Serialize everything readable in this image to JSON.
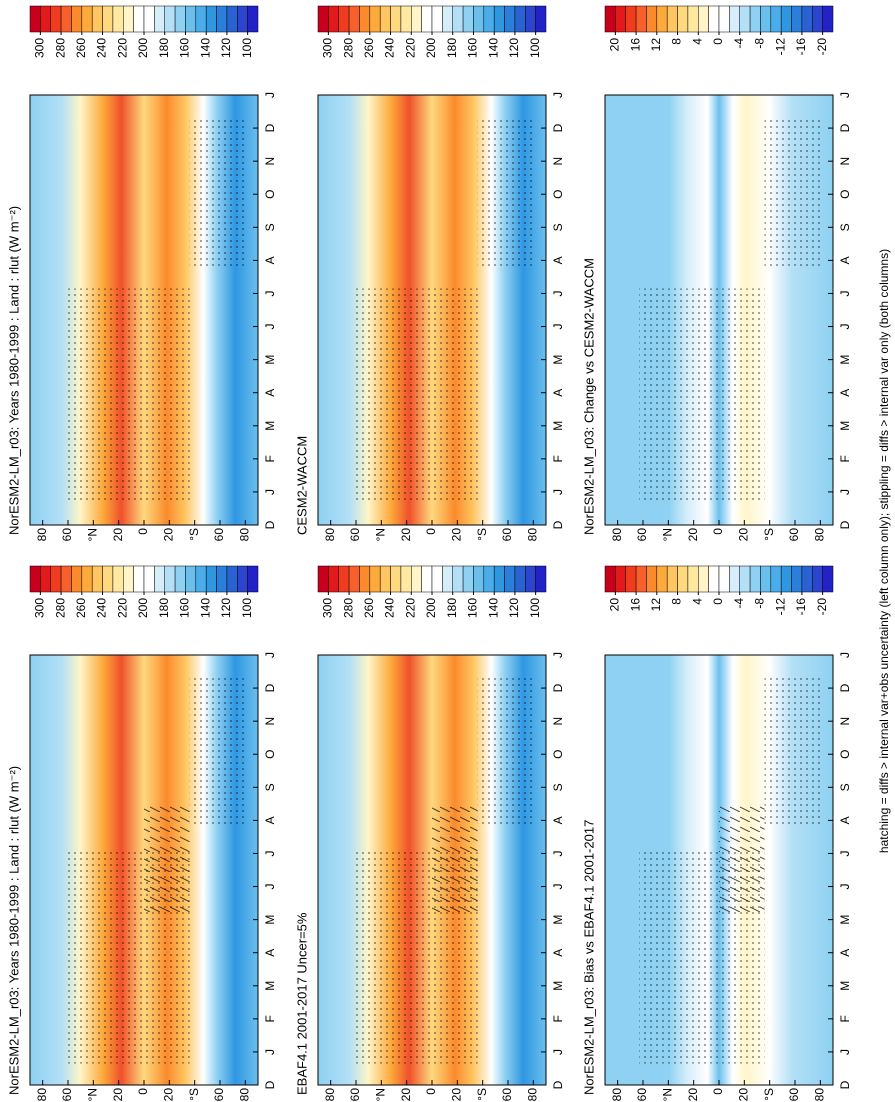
{
  "chart_data": [
    {
      "type": "contour",
      "title": "NorESM2-LM_r03: Years 1980-1999 : Land : rlut (W m⁻²)",
      "field": "abs",
      "hatching": true,
      "categories": [
        "D",
        "J",
        "F",
        "M",
        "A",
        "M",
        "J",
        "J",
        "A",
        "S",
        "O",
        "N",
        "D",
        "J"
      ],
      "ylim": [
        -90,
        90
      ],
      "yticks": [
        80,
        60,
        {
          "value": 40,
          "label": "°N"
        },
        20,
        0,
        {
          "value": -20,
          "label": "20"
        },
        {
          "value": -40,
          "label": "°S"
        },
        {
          "value": -60,
          "label": "60"
        },
        {
          "value": -80,
          "label": "80"
        }
      ],
      "clim": [
        310,
        90
      ],
      "colorbar_ticks": [
        300,
        280,
        260,
        240,
        220,
        200,
        180,
        160,
        140,
        120,
        100
      ]
    },
    {
      "type": "contour",
      "title": "NorESM2-LM_r03: Years 1980-1999 : Land : rlut (W m⁻²)",
      "field": "abs",
      "hatching": false,
      "categories": [
        "D",
        "J",
        "F",
        "M",
        "A",
        "M",
        "J",
        "J",
        "A",
        "S",
        "O",
        "N",
        "D",
        "J"
      ],
      "ylim": [
        -90,
        90
      ],
      "yticks": [
        80,
        60,
        {
          "value": 40,
          "label": "°N"
        },
        20,
        0,
        {
          "value": -20,
          "label": "20"
        },
        {
          "value": -40,
          "label": "°S"
        },
        {
          "value": -60,
          "label": "60"
        },
        {
          "value": -80,
          "label": "80"
        }
      ],
      "clim": [
        310,
        90
      ],
      "colorbar_ticks": [
        300,
        280,
        260,
        240,
        220,
        200,
        180,
        160,
        140,
        120,
        100
      ]
    },
    {
      "type": "contour",
      "title": "EBAF4.1 2001-2017 Uncer=5%",
      "field": "abs",
      "hatching": true,
      "categories": [
        "D",
        "J",
        "F",
        "M",
        "A",
        "M",
        "J",
        "J",
        "A",
        "S",
        "O",
        "N",
        "D",
        "J"
      ],
      "ylim": [
        -90,
        90
      ],
      "yticks": [
        80,
        60,
        {
          "value": 40,
          "label": "°N"
        },
        20,
        0,
        {
          "value": -20,
          "label": "20"
        },
        {
          "value": -40,
          "label": "°S"
        },
        {
          "value": -60,
          "label": "60"
        },
        {
          "value": -80,
          "label": "80"
        }
      ],
      "clim": [
        310,
        90
      ],
      "colorbar_ticks": [
        300,
        280,
        260,
        240,
        220,
        200,
        180,
        160,
        140,
        120,
        100
      ]
    },
    {
      "type": "contour",
      "title": "CESM2-WACCM",
      "field": "abs",
      "hatching": false,
      "categories": [
        "D",
        "J",
        "F",
        "M",
        "A",
        "M",
        "J",
        "J",
        "A",
        "S",
        "O",
        "N",
        "D",
        "J"
      ],
      "ylim": [
        -90,
        90
      ],
      "yticks": [
        80,
        60,
        {
          "value": 40,
          "label": "°N"
        },
        20,
        0,
        {
          "value": -20,
          "label": "20"
        },
        {
          "value": -40,
          "label": "°S"
        },
        {
          "value": -60,
          "label": "60"
        },
        {
          "value": -80,
          "label": "80"
        }
      ],
      "clim": [
        310,
        90
      ],
      "colorbar_ticks": [
        300,
        280,
        260,
        240,
        220,
        200,
        180,
        160,
        140,
        120,
        100
      ]
    },
    {
      "type": "contour",
      "title": "NorESM2-LM_r03: Bias vs EBAF4.1 2001-2017",
      "field": "diff",
      "hatching": true,
      "categories": [
        "D",
        "J",
        "F",
        "M",
        "A",
        "M",
        "J",
        "J",
        "A",
        "S",
        "O",
        "N",
        "D",
        "J"
      ],
      "ylim": [
        -90,
        90
      ],
      "yticks": [
        80,
        60,
        {
          "value": 40,
          "label": "°N"
        },
        20,
        0,
        {
          "value": -20,
          "label": "20"
        },
        {
          "value": -40,
          "label": "°S"
        },
        {
          "value": -60,
          "label": "60"
        },
        {
          "value": -80,
          "label": "80"
        }
      ],
      "clim": [
        22,
        -22
      ],
      "colorbar_ticks": [
        20,
        16,
        12,
        8,
        4,
        0,
        -4,
        -8,
        -12,
        -16,
        -20
      ]
    },
    {
      "type": "contour",
      "title": "NorESM2-LM_r03: Change vs CESM2-WACCM",
      "field": "diff",
      "hatching": false,
      "categories": [
        "D",
        "J",
        "F",
        "M",
        "A",
        "M",
        "J",
        "J",
        "A",
        "S",
        "O",
        "N",
        "D",
        "J"
      ],
      "ylim": [
        -90,
        90
      ],
      "yticks": [
        80,
        60,
        {
          "value": 40,
          "label": "°N"
        },
        20,
        0,
        {
          "value": -20,
          "label": "20"
        },
        {
          "value": -40,
          "label": "°S"
        },
        {
          "value": -60,
          "label": "60"
        },
        {
          "value": -80,
          "label": "80"
        }
      ],
      "clim": [
        22,
        -22
      ],
      "colorbar_ticks": [
        20,
        16,
        12,
        8,
        4,
        0,
        -4,
        -8,
        -12,
        -16,
        -20
      ]
    }
  ],
  "colorbar_colors": [
    "#c8001e",
    "#e31a1c",
    "#f03c1e",
    "#f7602a",
    "#fb8a2c",
    "#fdaa3c",
    "#fec560",
    "#fed97f",
    "#ffe9a0",
    "#fff5c8",
    "#ffffff",
    "#ffffff",
    "#d6eefa",
    "#b3e0f6",
    "#8ed1f2",
    "#6bbfed",
    "#4aace8",
    "#2f97e2",
    "#2a7fda",
    "#2a62d2",
    "#2c45cc",
    "#2222c8"
  ],
  "footnote": "hatching = diffs > internal var+obs uncertainty (left column only); stippling = diffs > internal var only (both columns)"
}
